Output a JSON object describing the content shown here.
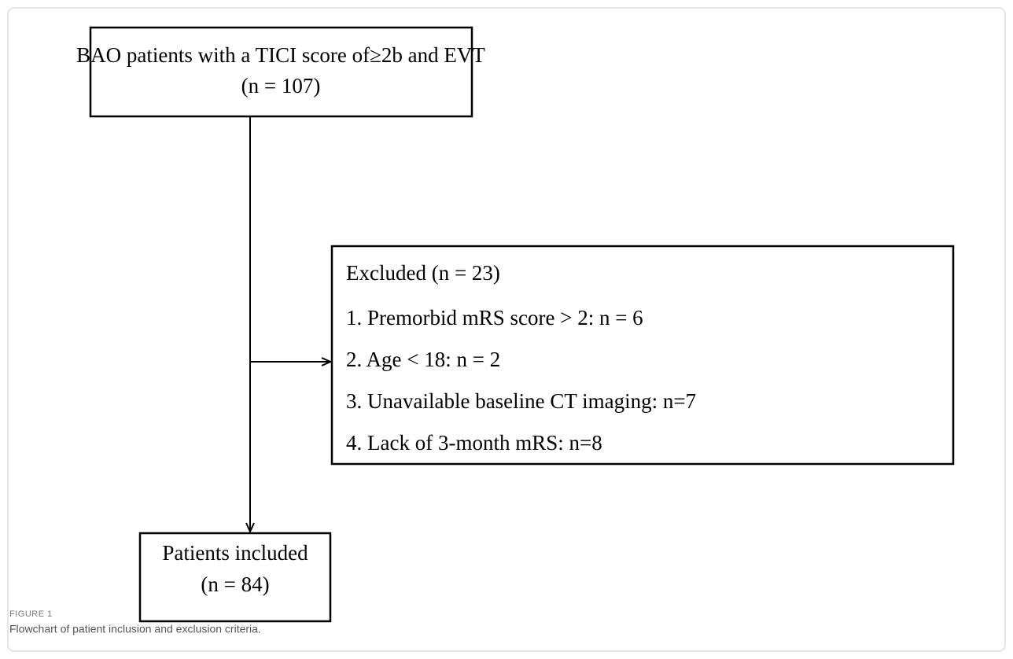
{
  "nodes": [
    {
      "lines": [
        "BAO patients with a TICI score of≥2b and EVT",
        "(n = 107)"
      ]
    },
    {
      "lines": [
        "Excluded (n = 23)",
        "1.  Premorbid mRS score > 2: n = 6",
        "2.  Age < 18: n = 2",
        "3.  Unavailable baseline CT imaging: n=7",
        "4.  Lack of 3-month mRS: n=8"
      ]
    },
    {
      "lines": [
        "Patients included",
        "(n = 84)"
      ]
    }
  ],
  "caption": {
    "label": "FIGURE 1",
    "text": "Flowchart of patient inclusion and exclusion criteria."
  }
}
